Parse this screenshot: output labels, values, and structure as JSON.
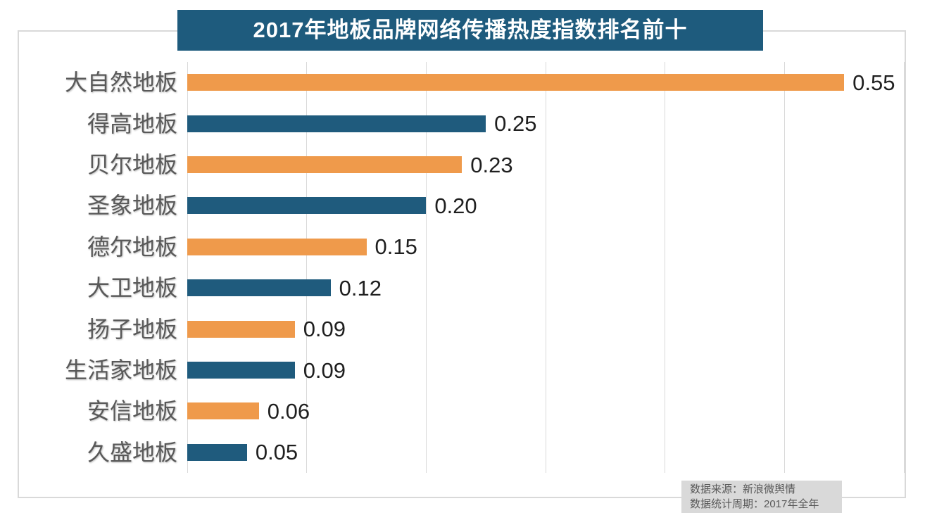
{
  "title": "2017年地板品牌网络传播热度指数排名前十",
  "source": {
    "line1": "数据来源：新浪微舆情",
    "line2": "数据统计周期：2017年全年"
  },
  "colors": {
    "title_background": "#1e5b7d",
    "bar_orange": "#ef9a4b",
    "bar_blue": "#1f5b7d",
    "gridline": "#d9d9d9",
    "frame_border": "#d9d9d9",
    "category_text": "#595959",
    "value_text": "#1f1f1f",
    "source_background": "#d9d9d9",
    "source_text": "#595959"
  },
  "chart_data": {
    "type": "bar",
    "orientation": "horizontal",
    "title": "2017年地板品牌网络传播热度指数排名前十",
    "categories": [
      "大自然地板",
      "得高地板",
      "贝尔地板",
      "圣象地板",
      "德尔地板",
      "大卫地板",
      "扬子地板",
      "生活家地板",
      "安信地板",
      "久盛地板"
    ],
    "values": [
      0.55,
      0.25,
      0.23,
      0.2,
      0.15,
      0.12,
      0.09,
      0.09,
      0.06,
      0.05
    ],
    "value_labels": [
      "0.55",
      "0.25",
      "0.23",
      "0.20",
      "0.15",
      "0.12",
      "0.09",
      "0.09",
      "0.06",
      "0.05"
    ],
    "bar_color_pattern": [
      "#ef9a4b",
      "#1f5b7d"
    ],
    "xlabel": "",
    "ylabel": "",
    "xlim": [
      0,
      0.6
    ],
    "gridline_step": 0.1,
    "grid": "vertical-only",
    "legend": "none"
  }
}
